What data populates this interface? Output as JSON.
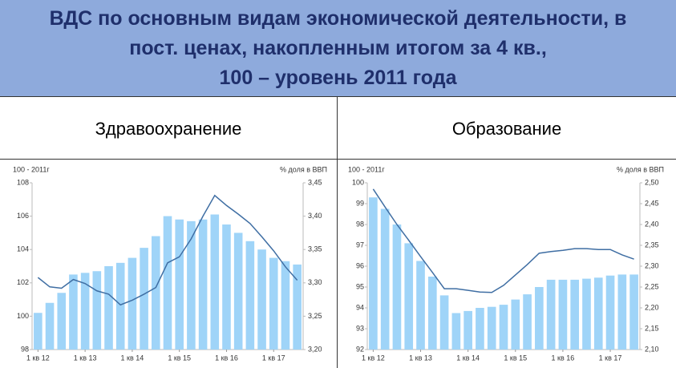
{
  "header": {
    "title_lines": [
      "ВДС по основным видам экономической деятельности, в",
      "пост. ценах, накопленным итогом за 4 кв.,",
      "100 – уровень 2011 года"
    ]
  },
  "chart_data": [
    {
      "type": "bar",
      "title": "Здравоохранение",
      "y_label": "100 - 2011г",
      "y2_label": "% доля в ВВП",
      "categories": [
        "1 кв 12",
        null,
        null,
        null,
        "1 кв 13",
        null,
        null,
        null,
        "1 кв 14",
        null,
        null,
        null,
        "1 кв 15",
        null,
        null,
        null,
        "1 кв 16",
        null,
        null,
        null,
        "1 кв 17",
        null,
        null
      ],
      "series": [
        {
          "type": "bar",
          "color": "#9fd4f8",
          "values": [
            100.2,
            100.8,
            101.4,
            102.5,
            102.6,
            102.7,
            103.0,
            103.2,
            103.5,
            104.1,
            104.8,
            106.0,
            105.8,
            105.7,
            105.8,
            106.1,
            105.5,
            105.0,
            104.5,
            104.0,
            103.5,
            103.3,
            103.1
          ]
        },
        {
          "type": "line",
          "axis": "y2",
          "color": "#3f6ea3",
          "values": [
            3.308,
            3.294,
            3.292,
            3.305,
            3.299,
            3.288,
            3.283,
            3.267,
            3.274,
            3.283,
            3.293,
            3.33,
            3.339,
            3.366,
            3.4,
            3.431,
            3.416,
            3.403,
            3.389,
            3.369,
            3.348,
            3.324,
            3.304
          ]
        }
      ],
      "ylim": [
        98,
        108
      ],
      "yticks": [
        98,
        100,
        102,
        104,
        106,
        108
      ],
      "y2lim": [
        3.2,
        3.45
      ],
      "y2ticks": [
        {
          "value": 3.2,
          "label": "3,20"
        },
        {
          "value": 3.25,
          "label": "3,25"
        },
        {
          "value": 3.3,
          "label": "3,30"
        },
        {
          "value": 3.35,
          "label": "3,35"
        },
        {
          "value": 3.4,
          "label": "3,40"
        },
        {
          "value": 3.45,
          "label": "3,45"
        }
      ]
    },
    {
      "type": "bar",
      "title": "Образование",
      "y_label": "100 - 2011г",
      "y2_label": "% доля в ВВП",
      "categories": [
        "1 кв 12",
        null,
        null,
        null,
        "1 кв 13",
        null,
        null,
        null,
        "1 кв 14",
        null,
        null,
        null,
        "1 кв 15",
        null,
        null,
        null,
        "1 кв 16",
        null,
        null,
        null,
        "1 кв 17",
        null,
        null
      ],
      "series": [
        {
          "type": "bar",
          "color": "#9fd4f8",
          "values": [
            99.3,
            98.75,
            98.0,
            97.1,
            96.25,
            95.5,
            94.6,
            93.75,
            93.85,
            94.0,
            94.05,
            94.15,
            94.4,
            94.65,
            95.0,
            95.35,
            95.35,
            95.35,
            95.4,
            95.45,
            95.55,
            95.6,
            95.6
          ]
        },
        {
          "type": "line",
          "axis": "y2",
          "color": "#3f6ea3",
          "values": [
            2.485,
            2.442,
            2.4,
            2.362,
            2.323,
            2.285,
            2.246,
            2.246,
            2.242,
            2.238,
            2.237,
            2.254,
            2.279,
            2.304,
            2.331,
            2.335,
            2.338,
            2.342,
            2.342,
            2.34,
            2.34,
            2.327,
            2.317
          ]
        }
      ],
      "ylim": [
        92,
        100
      ],
      "yticks": [
        92,
        93,
        94,
        95,
        96,
        97,
        98,
        99,
        100
      ],
      "y2lim": [
        2.1,
        2.5
      ],
      "y2ticks": [
        {
          "value": 2.1,
          "label": "2,10"
        },
        {
          "value": 2.15,
          "label": "2,15"
        },
        {
          "value": 2.2,
          "label": "2,20"
        },
        {
          "value": 2.25,
          "label": "2,25"
        },
        {
          "value": 2.3,
          "label": "2,30"
        },
        {
          "value": 2.35,
          "label": "2,35"
        },
        {
          "value": 2.4,
          "label": "2,40"
        },
        {
          "value": 2.45,
          "label": "2,45"
        },
        {
          "value": 2.5,
          "label": "2,50"
        }
      ]
    }
  ]
}
